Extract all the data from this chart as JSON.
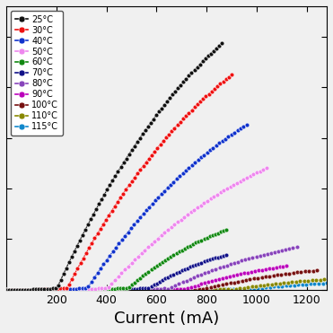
{
  "temperatures": [
    25,
    30,
    40,
    50,
    60,
    70,
    80,
    90,
    100,
    110,
    115
  ],
  "colors": [
    "#111111",
    "#ee1111",
    "#1133cc",
    "#ee88ee",
    "#118811",
    "#111188",
    "#8844bb",
    "#bb00bb",
    "#771111",
    "#888800",
    "#1188cc"
  ],
  "xlabel": "Current (mA)",
  "xlabel_fontsize": 13,
  "x_min": 0,
  "x_max": 1280,
  "x_ticks": [
    200,
    400,
    600,
    800,
    1000,
    1200
  ],
  "threshold_currents": [
    200,
    240,
    320,
    400,
    480,
    560,
    640,
    710,
    780,
    900,
    960
  ],
  "slopes": [
    0.0055,
    0.0048,
    0.0038,
    0.0028,
    0.0022,
    0.0016,
    0.0012,
    0.00085,
    0.00062,
    0.0004,
    0.0003
  ],
  "max_currents": [
    860,
    900,
    960,
    1040,
    880,
    880,
    1160,
    1120,
    1240,
    1270,
    1280
  ],
  "y_max": 2.8,
  "background_color": "#f0f0f0",
  "marker_size": 3.5,
  "line_width": 0.8,
  "n_points": 80
}
